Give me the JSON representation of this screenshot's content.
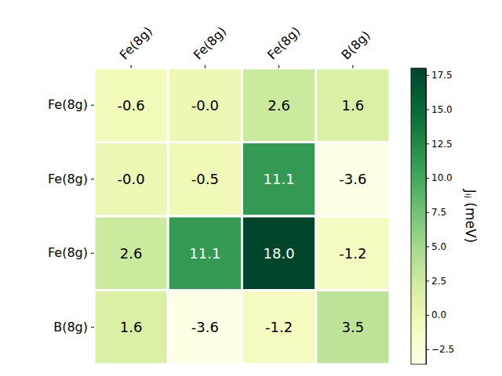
{
  "chart_data": {
    "type": "heatmap",
    "categories": [
      "Fe(8g)",
      "Fe(8g)",
      "Fe(8g)",
      "B(8g)"
    ],
    "y_categories": [
      "Fe(8g)",
      "Fe(8g)",
      "Fe(8g)",
      "B(8g)"
    ],
    "values": [
      [
        -0.6,
        -0.0,
        2.6,
        1.6
      ],
      [
        -0.0,
        -0.5,
        11.1,
        -3.6
      ],
      [
        2.6,
        11.1,
        18.0,
        -1.2
      ],
      [
        1.6,
        -3.6,
        -1.2,
        3.5
      ]
    ],
    "value_labels": [
      [
        "-0.6",
        "-0.0",
        "2.6",
        "1.6"
      ],
      [
        "-0.0",
        "-0.5",
        "11.1",
        "-3.6"
      ],
      [
        "2.6",
        "11.1",
        "18.0",
        "-1.2"
      ],
      [
        "1.6",
        "-3.6",
        "-1.2",
        "3.5"
      ]
    ],
    "data_labels": true,
    "color": "YlGn",
    "colorbar_label": "Jᵢⱼ (meV)",
    "colorbar_lim": [
      -3.6,
      18.0
    ],
    "colorbar_ticks": [
      {
        "value": -2.5,
        "label": "−2.5"
      },
      {
        "value": 0,
        "label": "0.0"
      },
      2.5,
      {
        "value": 5,
        "label": "5.0"
      },
      7.5,
      {
        "value": 10,
        "label": "10.0"
      },
      12.5,
      {
        "value": 15,
        "label": "15.0"
      },
      17.5
    ]
  }
}
